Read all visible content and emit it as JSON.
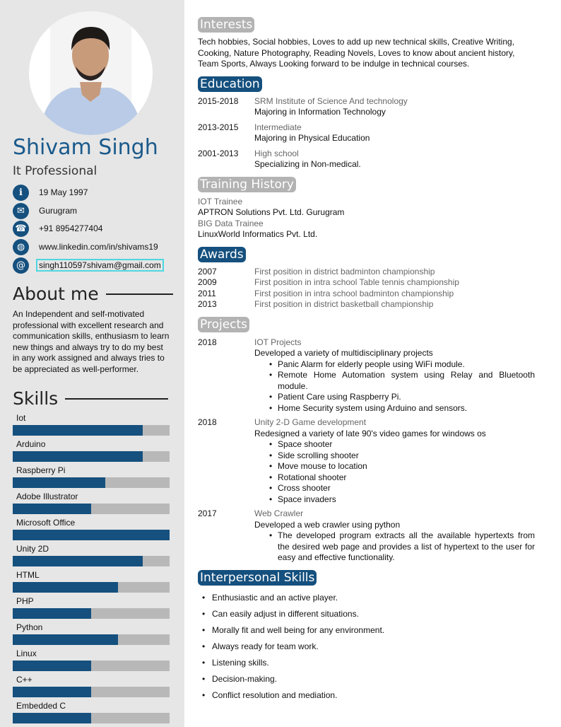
{
  "profile": {
    "name": "Shivam Singh",
    "title": "It Professional"
  },
  "contacts": [
    {
      "icon": "info-icon",
      "text": "19 May 1997"
    },
    {
      "icon": "envelope-icon",
      "text": "Gurugram"
    },
    {
      "icon": "phone-icon",
      "text": "+91 8954277404"
    },
    {
      "icon": "globe-icon",
      "text": "www.linkedin.com/in/shivams19"
    },
    {
      "icon": "at-icon",
      "text": "singh110597shivam@gmail.com"
    }
  ],
  "about": {
    "heading": "About me",
    "text": "An Independent and self-motivated professional with excellent research and communication skills, enthusiasm to learn new things and always try to do my best in any work assigned and always tries to be appreciated as well-performer."
  },
  "skills": {
    "heading": "Skills",
    "items": [
      {
        "label": "Iot",
        "level": 83
      },
      {
        "label": "Arduino",
        "level": 83
      },
      {
        "label": "Raspberry Pi",
        "level": 59
      },
      {
        "label": "Adobe Illustrator",
        "level": 50
      },
      {
        "label": "Microsoft Office",
        "level": 100
      },
      {
        "label": "Unity 2D",
        "level": 83
      },
      {
        "label": "HTML",
        "level": 67
      },
      {
        "label": "PHP",
        "level": 50
      },
      {
        "label": "Python",
        "level": 67
      },
      {
        "label": "Linux",
        "level": 50
      },
      {
        "label": "C++",
        "level": 50
      },
      {
        "label": "Embedded C",
        "level": 50
      }
    ]
  },
  "colors": {
    "accent": "#15507e",
    "name": "#1a5a8c",
    "heading_grey": "#b3b3b3",
    "sidebar": "#e6e6e6"
  },
  "interests": {
    "heading": "Interests",
    "text": "Tech hobbies, Social hobbies, Loves to add up new technical skills, Creative Writing, Cooking, Nature Photography, Reading Novels, Loves to know about ancient history, Team Sports, Always Looking forward to be indulge in technical courses."
  },
  "education": {
    "heading": "Education",
    "items": [
      {
        "years": "2015-2018",
        "school": "SRM Institute of Science And technology",
        "detail": "Majoring in Information Technology"
      },
      {
        "years": "2013-2015",
        "school": "Intermediate",
        "detail": "Majoring in Physical Education"
      },
      {
        "years": "2001-2013",
        "school": "High school",
        "detail": "Specializing in Non-medical."
      }
    ]
  },
  "training": {
    "heading": "Training History",
    "items": [
      {
        "role": "IOT Trainee",
        "org": "APTRON Solutions Pvt. Ltd. Gurugram"
      },
      {
        "role": "BIG Data Trainee",
        "org": "LinuxWorld Informatics Pvt. Ltd."
      }
    ]
  },
  "awards": {
    "heading": "Awards",
    "items": [
      {
        "year": "2007",
        "text": "First position in district badminton championship"
      },
      {
        "year": "2009",
        "text": "First position in intra school Table tennis championship"
      },
      {
        "year": "2011",
        "text": "First position in intra school badminton championship"
      },
      {
        "year": "2013",
        "text": "First position in district basketball championship"
      }
    ]
  },
  "projects": {
    "heading": "Projects",
    "items": [
      {
        "year": "2018",
        "title": "IOT Projects",
        "desc": "Developed a variety of multidisciplinary projects",
        "bullets": [
          "Panic Alarm for elderly people using WiFi module.",
          "Remote Home Automation system using Relay and Bluetooth module.",
          "Patient Care using Raspberry Pi.",
          "Home Security system using Arduino and sensors."
        ]
      },
      {
        "year": "2018",
        "title": "Unity 2-D Game development",
        "desc": "Redesigned a variety of late 90's video games for windows os",
        "bullets": [
          "Space shooter",
          "Side scrolling shooter",
          "Move mouse to location",
          "Rotational shooter",
          "Cross shooter",
          "Space invaders"
        ]
      },
      {
        "year": "2017",
        "title": "Web Crawler",
        "desc": "Developed a web crawler using python",
        "bullets": [
          "The developed program extracts all the available hypertexts from the desired web page and provides a list of hypertext to the user for easy and effective functionality."
        ]
      }
    ]
  },
  "interpersonal": {
    "heading": "Interpersonal Skills",
    "items": [
      "Enthusiastic and an active player.",
      "Can easily adjust in different situations.",
      "Morally fit and well being for any environment.",
      "Always ready for team work.",
      "Listening skills.",
      "Decision-making.",
      "Conflict resolution and mediation."
    ]
  }
}
